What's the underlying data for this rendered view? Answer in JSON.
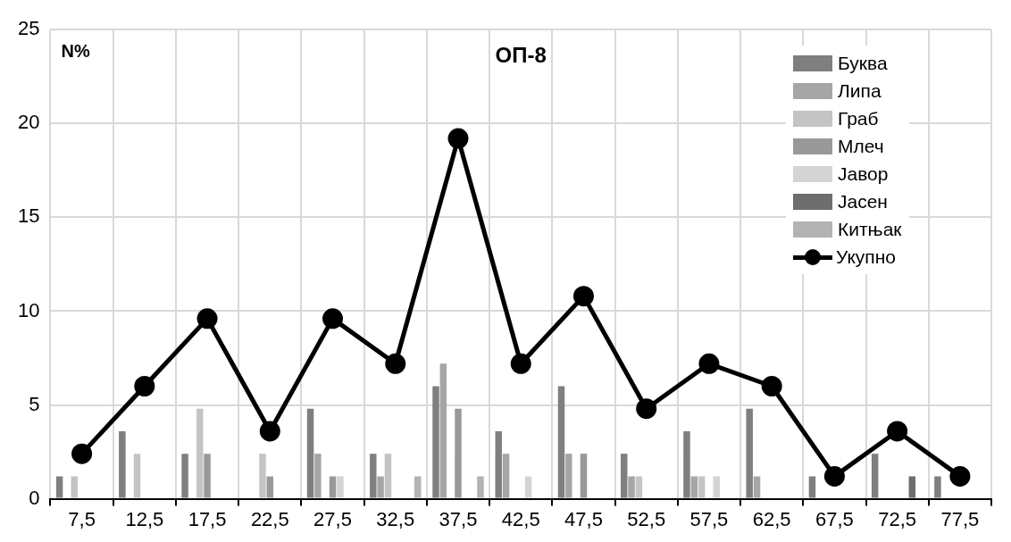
{
  "chart_data": {
    "type": "bar",
    "title": "ОП-8",
    "ylabel": "N%",
    "categories": [
      "7,5",
      "12,5",
      "17,5",
      "22,5",
      "27,5",
      "32,5",
      "37,5",
      "42,5",
      "47,5",
      "52,5",
      "57,5",
      "62,5",
      "67,5",
      "72,5",
      "77,5"
    ],
    "series": [
      {
        "name": "Буква",
        "color": "#7f7f7f",
        "values": [
          1.2,
          3.6,
          2.4,
          null,
          4.8,
          2.4,
          6.0,
          3.6,
          6.0,
          2.4,
          3.6,
          4.8,
          1.2,
          2.4,
          1.2
        ]
      },
      {
        "name": "Липа",
        "color": "#a6a6a6",
        "values": [
          null,
          null,
          null,
          null,
          2.4,
          1.2,
          7.2,
          2.4,
          2.4,
          1.2,
          1.2,
          1.2,
          null,
          null,
          null
        ]
      },
      {
        "name": "Граб",
        "color": "#c4c4c4",
        "values": [
          1.2,
          2.4,
          4.8,
          2.4,
          null,
          2.4,
          null,
          null,
          null,
          1.2,
          1.2,
          null,
          null,
          null,
          null
        ]
      },
      {
        "name": "Млеч",
        "color": "#999999",
        "values": [
          null,
          null,
          2.4,
          1.2,
          1.2,
          null,
          4.8,
          null,
          2.4,
          null,
          null,
          null,
          null,
          null,
          null
        ]
      },
      {
        "name": "Јавор",
        "color": "#d4d4d4",
        "values": [
          null,
          null,
          null,
          null,
          1.2,
          null,
          null,
          1.2,
          null,
          null,
          1.2,
          null,
          null,
          null,
          null
        ]
      },
      {
        "name": "Јасен",
        "color": "#6e6e6e",
        "values": [
          null,
          null,
          null,
          null,
          null,
          null,
          null,
          null,
          null,
          null,
          null,
          null,
          null,
          1.2,
          null
        ]
      },
      {
        "name": "Китњак",
        "color": "#b3b3b3",
        "values": [
          null,
          null,
          null,
          null,
          null,
          1.2,
          1.2,
          null,
          null,
          null,
          null,
          null,
          null,
          null,
          null
        ]
      },
      {
        "name": "Укупно",
        "type": "line",
        "color": "#000000",
        "values": [
          2.4,
          6.0,
          9.6,
          3.6,
          9.6,
          7.2,
          19.2,
          7.2,
          10.8,
          4.8,
          7.2,
          6.0,
          1.2,
          3.6,
          1.2
        ]
      }
    ],
    "ylim": [
      0,
      25
    ],
    "yticks": [
      0,
      5,
      10,
      15,
      20,
      25
    ],
    "grid": true,
    "legend": "top right",
    "marker": "circle",
    "line_style": "solid"
  }
}
